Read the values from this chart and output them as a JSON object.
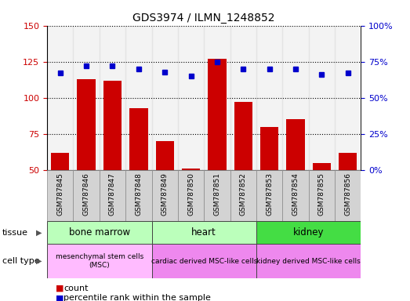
{
  "title": "GDS3974 / ILMN_1248852",
  "samples": [
    "GSM787845",
    "GSM787846",
    "GSM787847",
    "GSM787848",
    "GSM787849",
    "GSM787850",
    "GSM787851",
    "GSM787852",
    "GSM787853",
    "GSM787854",
    "GSM787855",
    "GSM787856"
  ],
  "counts": [
    62,
    113,
    112,
    93,
    70,
    51,
    127,
    97,
    80,
    85,
    55,
    62
  ],
  "percentiles": [
    67,
    72,
    72,
    70,
    68,
    65,
    75,
    70,
    70,
    70,
    66,
    67
  ],
  "bar_color": "#cc0000",
  "dot_color": "#0000cc",
  "ylim_left": [
    50,
    150
  ],
  "ylim_right": [
    0,
    100
  ],
  "yticks_left": [
    50,
    75,
    100,
    125,
    150
  ],
  "yticks_right": [
    0,
    25,
    50,
    75,
    100
  ],
  "tissue_groups": [
    {
      "label": "bone marrow",
      "start": 0,
      "end": 3,
      "color": "#bbffbb"
    },
    {
      "label": "heart",
      "start": 4,
      "end": 7,
      "color": "#bbffbb"
    },
    {
      "label": "kidney",
      "start": 8,
      "end": 11,
      "color": "#44dd44"
    }
  ],
  "cell_groups": [
    {
      "label": "mesenchymal stem cells\n(MSC)",
      "start": 0,
      "end": 3,
      "color": "#ffbbff"
    },
    {
      "label": "cardiac derived MSC-like cells",
      "start": 4,
      "end": 7,
      "color": "#ee88ee"
    },
    {
      "label": "kidney derived MSC-like cells",
      "start": 8,
      "end": 11,
      "color": "#ee88ee"
    }
  ],
  "col_bg_color": "#d3d3d3",
  "legend_count_color": "#cc0000",
  "legend_dot_color": "#0000cc",
  "gridline_color": "#000000",
  "ytick_label_color_left": "#cc0000",
  "ytick_label_color_right": "#0000cc"
}
